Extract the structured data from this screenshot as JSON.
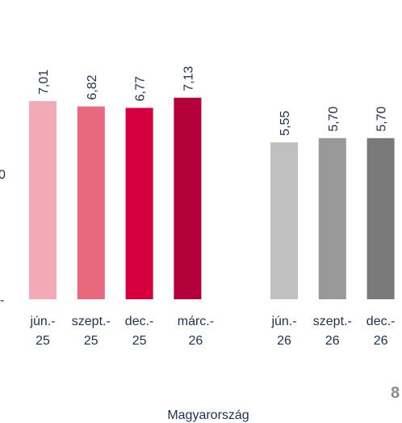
{
  "chart_data": {
    "type": "bar",
    "categories": [
      [
        "jún.-",
        "25"
      ],
      [
        "szept.-",
        "25"
      ],
      [
        "dec.-",
        "25"
      ],
      [
        "márc.-",
        "26"
      ],
      null,
      [
        "jún.-",
        "26"
      ],
      [
        "szept.-",
        "26"
      ],
      [
        "dec.-",
        "26"
      ]
    ],
    "values": [
      7.01,
      6.82,
      6.77,
      7.13,
      null,
      5.55,
      5.7,
      5.7
    ],
    "value_labels": [
      "7,01",
      "6,82",
      "6,77",
      "7,13",
      null,
      "5,55",
      "5,70",
      "5,70"
    ],
    "colors": [
      "#f2aab6",
      "#e8697d",
      "#d5003d",
      "#b4003a",
      null,
      "#c0c0c0",
      "#999999",
      "#7a7a7a"
    ],
    "group_label": "Magyarország",
    "cropped_texts": [
      "0",
      "-",
      "8"
    ]
  }
}
